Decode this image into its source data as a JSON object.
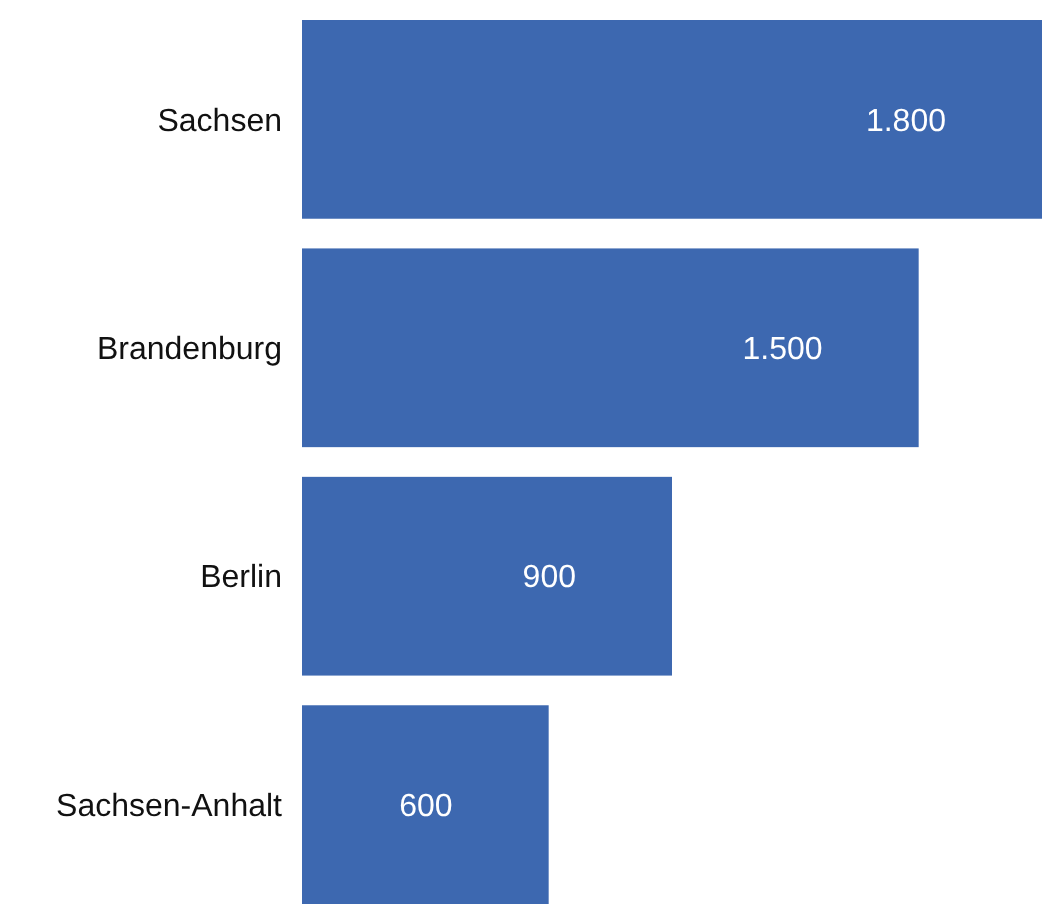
{
  "chart_data": {
    "type": "bar",
    "orientation": "horizontal",
    "categories": [
      "Sachsen",
      "Brandenburg",
      "Berlin",
      "Sachsen-Anhalt"
    ],
    "values": [
      1800,
      1500,
      900,
      600
    ],
    "value_labels": [
      "1.800",
      "1.500",
      "900",
      "600"
    ],
    "color": "#3d68b0",
    "xlim": [
      0,
      1800
    ],
    "tick_labels": "y"
  }
}
